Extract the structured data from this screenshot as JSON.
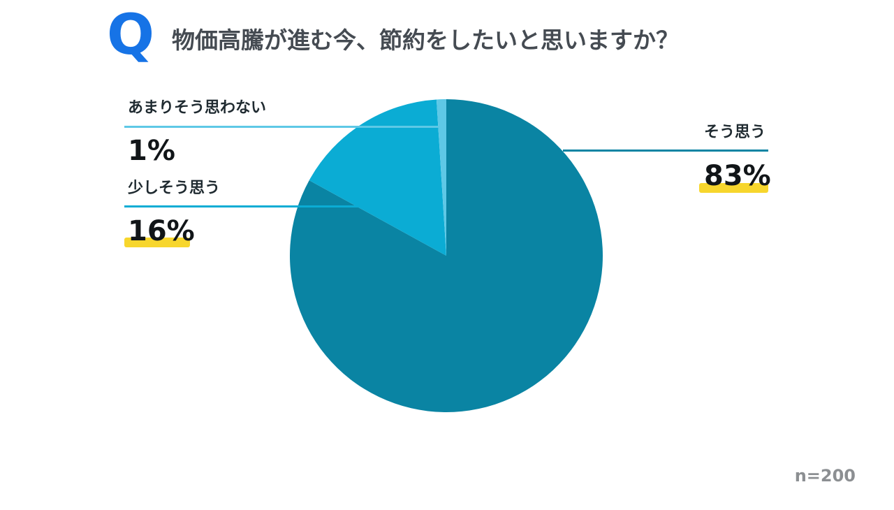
{
  "header": {
    "q_mark": "Q",
    "title": "物価高騰が進む今、節約をしたいと思いますか？"
  },
  "footnote": "n=200",
  "colors": {
    "slice_yes": "#0a84a3",
    "slice_somewhat": "#0bacd4",
    "slice_not_much": "#5ec8e6",
    "highlight": "#f7d62d",
    "q_mark": "#1673e6"
  },
  "chart_data": {
    "type": "pie",
    "title": "物価高騰が進む今、節約をしたいと思いますか？",
    "slices": [
      {
        "label": "そう思う",
        "value": 83,
        "display": "83%"
      },
      {
        "label": "少しそう思う",
        "value": 16,
        "display": "16%"
      },
      {
        "label": "あまりそう思わない",
        "value": 1,
        "display": "1%"
      }
    ],
    "n": 200
  }
}
